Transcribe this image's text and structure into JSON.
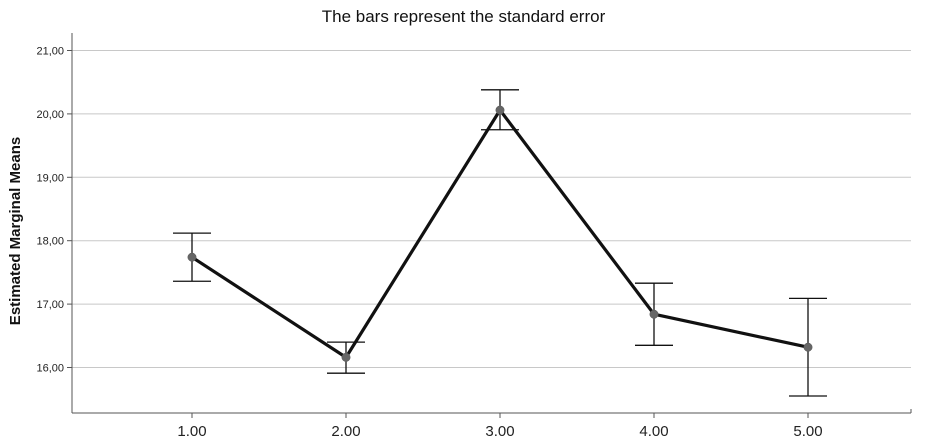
{
  "chart_data": {
    "type": "line",
    "title": "The bars represent the standard error",
    "xlabel": "",
    "ylabel": "Estimated Marginal Means",
    "categories": [
      "1.00",
      "2.00",
      "3.00",
      "4.00",
      "5.00"
    ],
    "yticks": [
      "16,00",
      "17,00",
      "18,00",
      "19,00",
      "20,00",
      "21,00"
    ],
    "ylim": [
      15.3,
      21.0
    ],
    "grid": true,
    "series": [
      {
        "values": [
          17.74,
          16.16,
          20.06,
          16.84,
          16.32
        ],
        "error_low": [
          17.36,
          15.91,
          19.75,
          16.35,
          15.55
        ],
        "error_high": [
          18.12,
          16.4,
          20.38,
          17.33,
          17.09
        ]
      }
    ],
    "colors": {
      "line": "#111111",
      "marker": "#666666",
      "error_bar": "#111111",
      "grid": "#c8c8c8",
      "axis": "#555555"
    }
  }
}
